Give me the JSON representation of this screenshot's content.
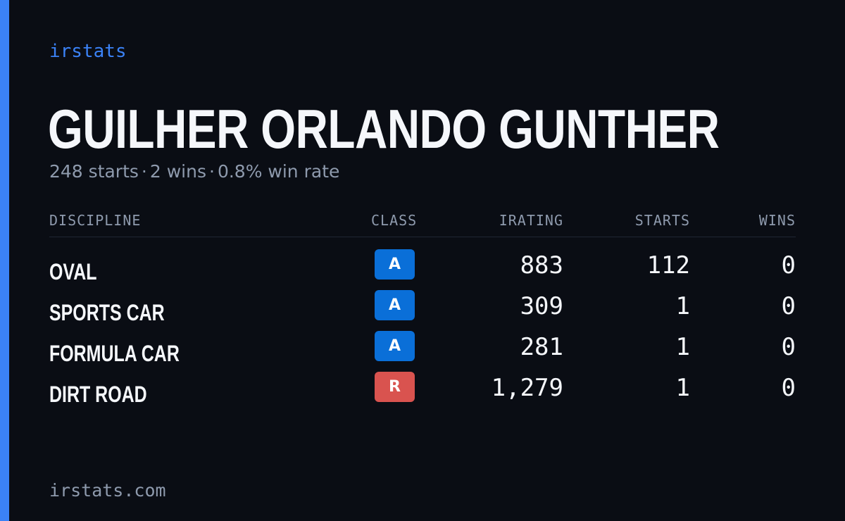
{
  "brand": "irstats",
  "driver": {
    "name": "GUILHER ORLANDO GUNTHER",
    "summary": {
      "starts": "248 starts",
      "wins": "2 wins",
      "win_rate": "0.8% win rate",
      "separator": "·"
    }
  },
  "table": {
    "headers": {
      "discipline": "DISCIPLINE",
      "class": "CLASS",
      "irating": "IRATING",
      "starts": "STARTS",
      "wins": "WINS"
    },
    "rows": [
      {
        "discipline": "OVAL",
        "class": "A",
        "class_color": "#0a6fd8",
        "class_text_color": "#ffffff",
        "irating": "883",
        "starts": "112",
        "wins": "0"
      },
      {
        "discipline": "SPORTS CAR",
        "class": "A",
        "class_color": "#0a6fd8",
        "class_text_color": "#ffffff",
        "irating": "309",
        "starts": "1",
        "wins": "0"
      },
      {
        "discipline": "FORMULA CAR",
        "class": "A",
        "class_color": "#0a6fd8",
        "class_text_color": "#ffffff",
        "irating": "281",
        "starts": "1",
        "wins": "0"
      },
      {
        "discipline": "DIRT ROAD",
        "class": "R",
        "class_color": "#d9534f",
        "class_text_color": "#ffffff",
        "irating": "1,279",
        "starts": "1",
        "wins": "0"
      }
    ]
  },
  "footer": {
    "url": "irstats.com"
  },
  "colors": {
    "background": "#0a0d14",
    "accent": "#3b82f6",
    "text": "#f5f7fb",
    "muted": "#8e9aad"
  }
}
